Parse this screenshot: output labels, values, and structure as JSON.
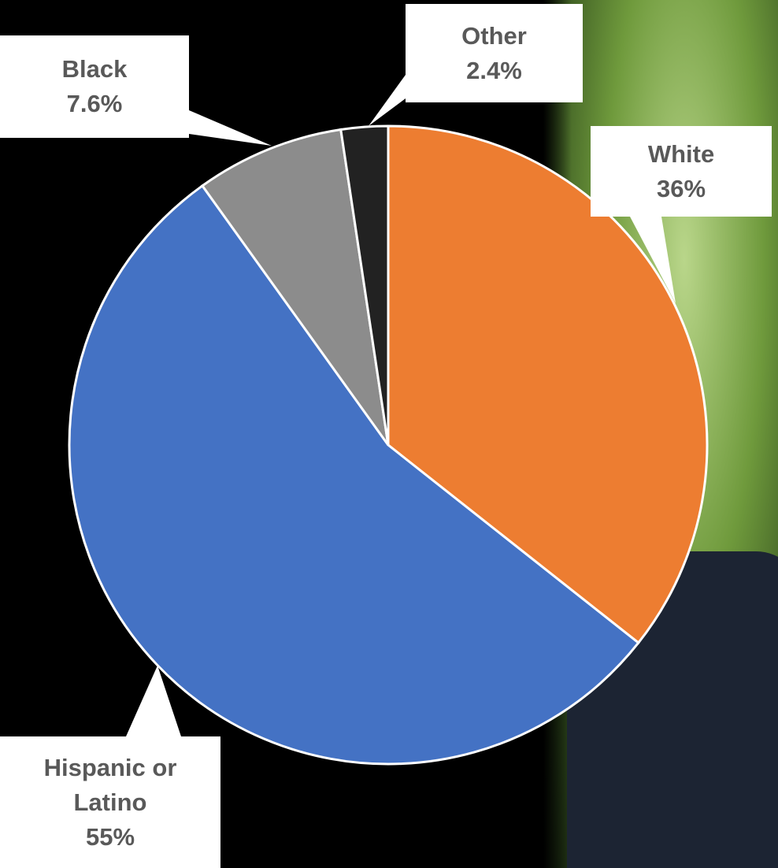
{
  "chart_data": {
    "type": "pie",
    "categories": [
      "White",
      "Hispanic or Latino",
      "Black",
      "Other"
    ],
    "values": [
      36,
      55,
      7.6,
      2.4
    ],
    "value_labels": [
      "36%",
      "55%",
      "7.6%",
      "2.4%"
    ],
    "colors": [
      "#ed7d31",
      "#4472c4",
      "#8c8c8c",
      "#222222"
    ]
  }
}
